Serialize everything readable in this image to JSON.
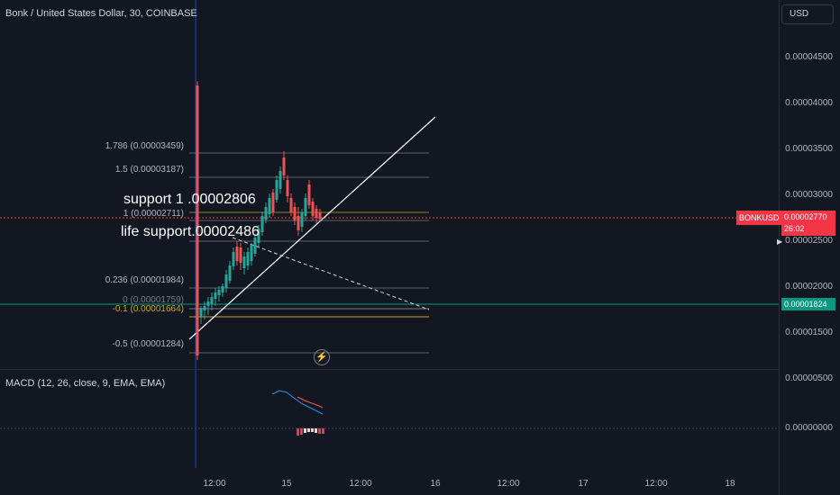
{
  "header": {
    "symbol_title": "Bonk / United States Dollar, 30, COINBASE",
    "currency": "USD"
  },
  "price_axis": {
    "ticks": [
      "0.00004500",
      "0.00004000",
      "0.00003500",
      "0.00003000",
      "0.00002500",
      "0.00002000",
      "0.00001500"
    ]
  },
  "time_axis": {
    "ticks": [
      "12:00",
      "15",
      "12:00",
      "16",
      "12:00",
      "17",
      "12:00",
      "18"
    ]
  },
  "fib_levels": [
    {
      "label": "1.786 (0.00003459)",
      "color": "#b2b5be"
    },
    {
      "label": "1.5 (0.00003187)",
      "color": "#b2b5be"
    },
    {
      "label": "1 (0.00002711)",
      "color": "#b2b5be"
    },
    {
      "label": "0.236 (0.00001984)",
      "color": "#b2b5be"
    },
    {
      "label": "0 (0.00001759)",
      "color": "#787b86"
    },
    {
      "label": "-0.1 (0.00001664)",
      "color": "#c9a227"
    },
    {
      "label": "-0.5 (0.00001284)",
      "color": "#b2b5be"
    }
  ],
  "annotations": {
    "support1": "support 1 .00002806",
    "life_support": "life support.00002486"
  },
  "badges": {
    "symbol": "BONKUSD",
    "price": "0.00002770",
    "countdown": "26:02",
    "horizontal_line": "0.00001824"
  },
  "macd": {
    "label": "MACD (12, 26, close, 9, EMA, EMA)",
    "ticks": [
      "0.00000500",
      "0.00000000"
    ]
  },
  "colors": {
    "bg": "#131722",
    "up": "#26a69a",
    "down": "#ef5350",
    "price_line": "#f23645",
    "hline": "#089981"
  },
  "icons": {
    "replay": "lightning-icon"
  }
}
